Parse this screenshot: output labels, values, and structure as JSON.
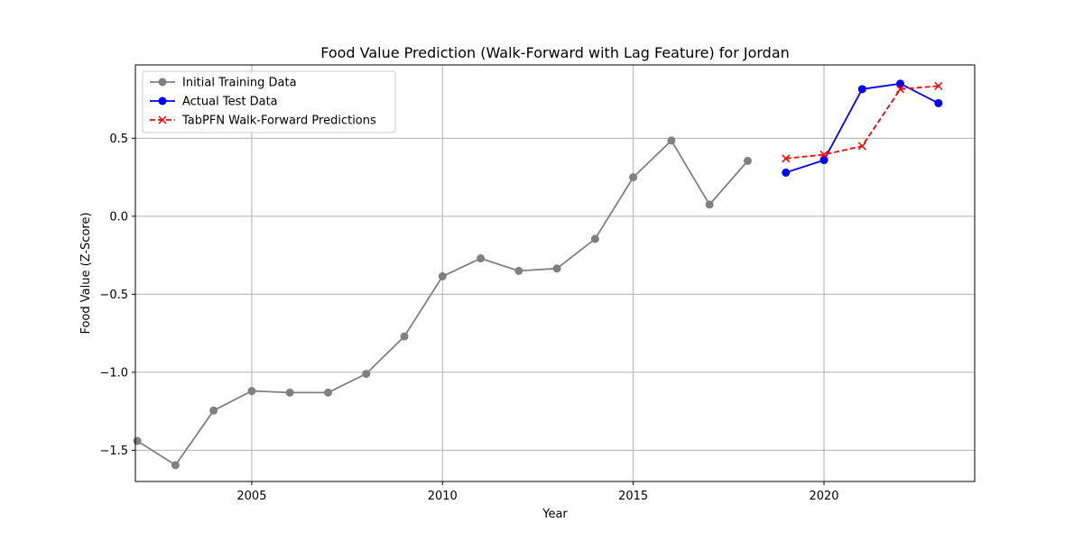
{
  "chart_data": {
    "type": "line",
    "title": "Food Value Prediction (Walk-Forward with Lag Feature) for Jordan",
    "xlabel": "Year",
    "ylabel": "Food Value (Z-Score)",
    "xlim": [
      2001.95,
      2023.95
    ],
    "ylim": [
      -1.7,
      0.97
    ],
    "xticks": [
      2005,
      2010,
      2015,
      2020
    ],
    "xtick_labels": [
      "2005",
      "2010",
      "2015",
      "2020"
    ],
    "yticks": [
      -1.5,
      -1.0,
      -0.5,
      0.0,
      0.5
    ],
    "ytick_labels": [
      "−1.5",
      "−1.0",
      "−0.5",
      "0.0",
      "0.5"
    ],
    "grid": true,
    "legend_position": "top-left",
    "series": [
      {
        "name": "Initial Training Data",
        "color": "#808080",
        "marker": "circle",
        "line_style": "solid",
        "x": [
          2002,
          2003,
          2004,
          2005,
          2006,
          2007,
          2008,
          2009,
          2010,
          2011,
          2012,
          2013,
          2014,
          2015,
          2016,
          2017,
          2018
        ],
        "y": [
          -1.44,
          -1.595,
          -1.245,
          -1.12,
          -1.13,
          -1.13,
          -1.01,
          -0.77,
          -0.385,
          -0.27,
          -0.35,
          -0.335,
          -0.145,
          0.25,
          0.485,
          0.075,
          0.355
        ]
      },
      {
        "name": "Actual Test Data",
        "color": "#0000ff",
        "marker": "circle",
        "line_style": "solid",
        "x": [
          2019,
          2020,
          2021,
          2022,
          2023
        ],
        "y": [
          0.28,
          0.36,
          0.815,
          0.85,
          0.725
        ]
      },
      {
        "name": "TabPFN Walk-Forward Predictions",
        "color": "#ff0000",
        "marker": "x",
        "line_style": "dashed",
        "x": [
          2019,
          2020,
          2021,
          2022,
          2023
        ],
        "y": [
          0.37,
          0.395,
          0.45,
          0.815,
          0.835
        ]
      }
    ]
  }
}
